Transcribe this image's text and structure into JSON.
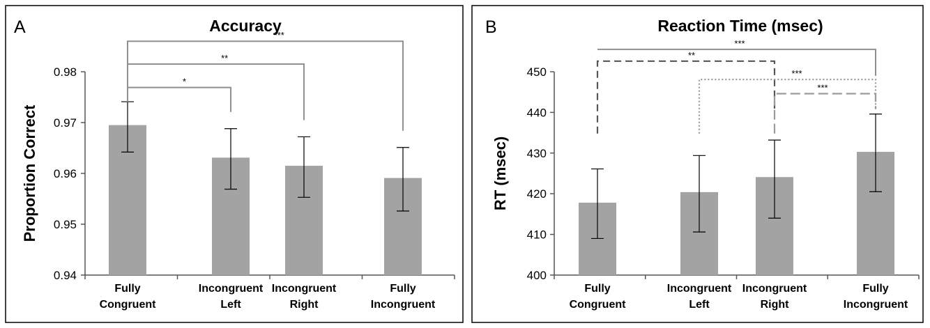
{
  "chart_data": [
    {
      "panel": "A",
      "type": "bar",
      "title": "Accuracy",
      "ylabel": "Proportion Correct",
      "xlabel": "",
      "ylim": [
        0.94,
        0.98
      ],
      "yticks": [
        "0.94",
        "0.95",
        "0.96",
        "0.97",
        "0.98"
      ],
      "categories": [
        [
          "Fully",
          "Congruent"
        ],
        [
          "Incongruent",
          "Left"
        ],
        [
          "Incongruent",
          "Right"
        ],
        [
          "Fully",
          "Incongruent"
        ]
      ],
      "values": [
        0.9695,
        0.9631,
        0.9615,
        0.9591
      ],
      "error_low": [
        0.9642,
        0.9569,
        0.9553,
        0.9526
      ],
      "error_high": [
        0.9741,
        0.9688,
        0.9672,
        0.9651
      ],
      "bar_color": "#a3a3a3",
      "significance": [
        {
          "from": 0,
          "to": 1,
          "label": "*",
          "level": 0.9769,
          "style": "solid",
          "color": "#909090"
        },
        {
          "from": 0,
          "to": 2,
          "label": "**",
          "level": 0.9815,
          "style": "solid",
          "color": "#909090"
        },
        {
          "from": 0,
          "to": 3,
          "label": "***",
          "level": 0.986,
          "style": "solid",
          "color": "#909090"
        }
      ]
    },
    {
      "panel": "B",
      "type": "bar",
      "title": "Reaction Time (msec)",
      "ylabel": "RT (msec)",
      "xlabel": "",
      "ylim": [
        400,
        450
      ],
      "yticks": [
        "400",
        "410",
        "420",
        "430",
        "440",
        "450"
      ],
      "categories": [
        [
          "Fully",
          "Congruent"
        ],
        [
          "Incongruent",
          "Left"
        ],
        [
          "Incongruent",
          "Right"
        ],
        [
          "Fully",
          "Incongruent"
        ]
      ],
      "values": [
        417.8,
        420.4,
        424.1,
        430.3
      ],
      "error_low": [
        409.0,
        410.6,
        414.0,
        420.5
      ],
      "error_high": [
        426.1,
        429.4,
        433.2,
        439.6
      ],
      "bar_color": "#a3a3a3",
      "significance": [
        {
          "from": 0,
          "to": 3,
          "label": "***",
          "level": 455.5,
          "drop_to": [
            455.5,
            455.5
          ],
          "style": "solid",
          "color": "#909090"
        },
        {
          "from": 0,
          "to": 2,
          "label": "**",
          "level": 452.6,
          "drop_to": [
            434.8,
            440.8
          ],
          "style": "dashed",
          "color": "#555555"
        },
        {
          "from": 1,
          "to": 3,
          "label": "***",
          "level": 448.1,
          "drop_to": [
            434.8,
            440.8
          ],
          "style": "dotted",
          "color": "#9a9a9a"
        },
        {
          "from": 2,
          "to": 3,
          "label": "***",
          "level": 444.6,
          "drop_to": [
            434.8,
            440.8
          ],
          "style": "longdash",
          "color": "#9a9a9a"
        }
      ]
    }
  ]
}
